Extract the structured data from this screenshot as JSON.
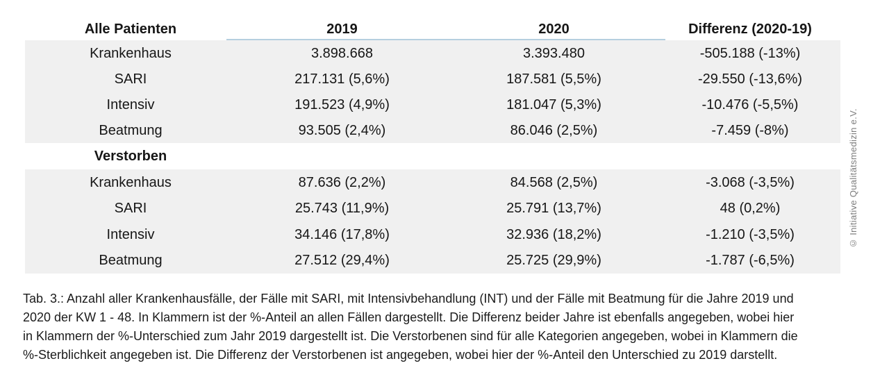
{
  "table": {
    "headers": {
      "col1": "Alle Patienten",
      "col2": "2019",
      "col3": "2020",
      "col4": "Differenz (2020-19)"
    },
    "all_patients": {
      "rows": [
        {
          "label": "Krankenhaus",
          "y2019": "3.898.668",
          "y2020": "3.393.480",
          "diff": "-505.188 (-13%)"
        },
        {
          "label": "SARI",
          "y2019": "217.131 (5,6%)",
          "y2020": "187.581 (5,5%)",
          "diff": "-29.550 (-13,6%)"
        },
        {
          "label": "Intensiv",
          "y2019": "191.523 (4,9%)",
          "y2020": "181.047 (5,3%)",
          "diff": "-10.476 (-5,5%)"
        },
        {
          "label": "Beatmung",
          "y2019": "93.505 (2,4%)",
          "y2020": "86.046 (2,5%)",
          "diff": "-7.459 (-8%)"
        }
      ]
    },
    "deceased_label": "Verstorben",
    "deceased": {
      "rows": [
        {
          "label": "Krankenhaus",
          "y2019": "87.636 (2,2%)",
          "y2020": "84.568 (2,5%)",
          "diff": "-3.068 (-3,5%)"
        },
        {
          "label": "SARI",
          "y2019": "25.743 (11,9%)",
          "y2020": "25.791 (13,7%)",
          "diff": "48 (0,2%)"
        },
        {
          "label": "Intensiv",
          "y2019": "34.146 (17,8%)",
          "y2020": "32.936 (18,2%)",
          "diff": "-1.210 (-3,5%)"
        },
        {
          "label": "Beatmung",
          "y2019": "27.512 (29,4%)",
          "y2020": "25.725 (29,9%)",
          "diff": "-1.787 (-6,5%)"
        }
      ]
    }
  },
  "caption_lines": [
    "Tab. 3.: Anzahl aller Krankenhausfälle, der Fälle mit SARI, mit Intensivbehandlung (INT) und der Fälle mit Beatmung für die Jahre 2019 und",
    "2020 der KW 1 - 48. In Klammern ist der %-Anteil an allen Fällen dargestellt. Die Differenz beider Jahre ist ebenfalls angegeben, wobei hier",
    "in Klammern der %-Unterschied zum Jahr 2019 dargestellt ist. Die Verstorbenen sind für alle Kategorien angegeben, wobei in Klammern die",
    "%-Sterblichkeit angegeben ist. Die Differenz der Verstorbenen ist angegeben, wobei hier der %-Anteil den Unterschied zu 2019 darstellt."
  ],
  "watermark": "© Initiative Qualitätsmedizin e.V.",
  "colors": {
    "row_shade": "#f0f0f0",
    "year_rule": "#b5cfdf",
    "watermark_text": "#7e7e7e",
    "text": "#161616"
  }
}
